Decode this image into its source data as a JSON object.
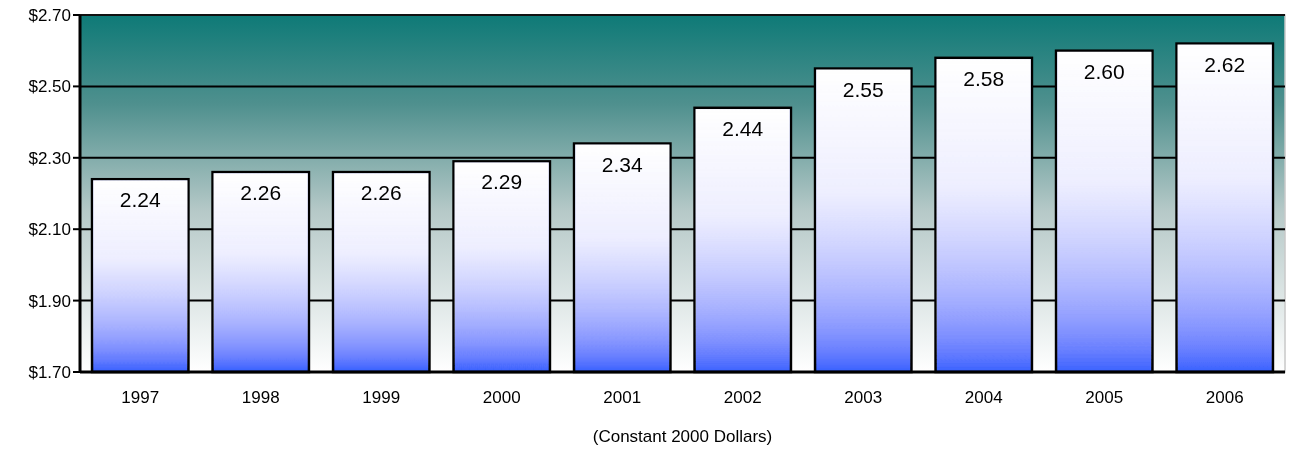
{
  "chart_data": {
    "type": "bar",
    "xlabel": "(Constant 2000 Dollars)",
    "categories": [
      "1997",
      "1998",
      "1999",
      "2000",
      "2001",
      "2002",
      "2003",
      "2004",
      "2005",
      "2006"
    ],
    "values": [
      2.24,
      2.26,
      2.26,
      2.29,
      2.34,
      2.44,
      2.55,
      2.58,
      2.6,
      2.62
    ],
    "value_labels": [
      "2.24",
      "2.26",
      "2.26",
      "2.29",
      "2.34",
      "2.44",
      "2.55",
      "2.58",
      "2.60",
      "2.62"
    ],
    "color": "#3a63ff",
    "ylim": [
      1.7,
      2.7
    ],
    "yticks": [
      {
        "value": 1.7,
        "label": "$1.70"
      },
      {
        "value": 1.9,
        "label": "$1.90"
      },
      {
        "value": 2.1,
        "label": "$2.10"
      },
      {
        "value": 2.3,
        "label": "$2.30"
      },
      {
        "value": 2.5,
        "label": "$2.50"
      },
      {
        "value": 2.7,
        "label": "$2.70"
      }
    ],
    "grid": "y"
  }
}
